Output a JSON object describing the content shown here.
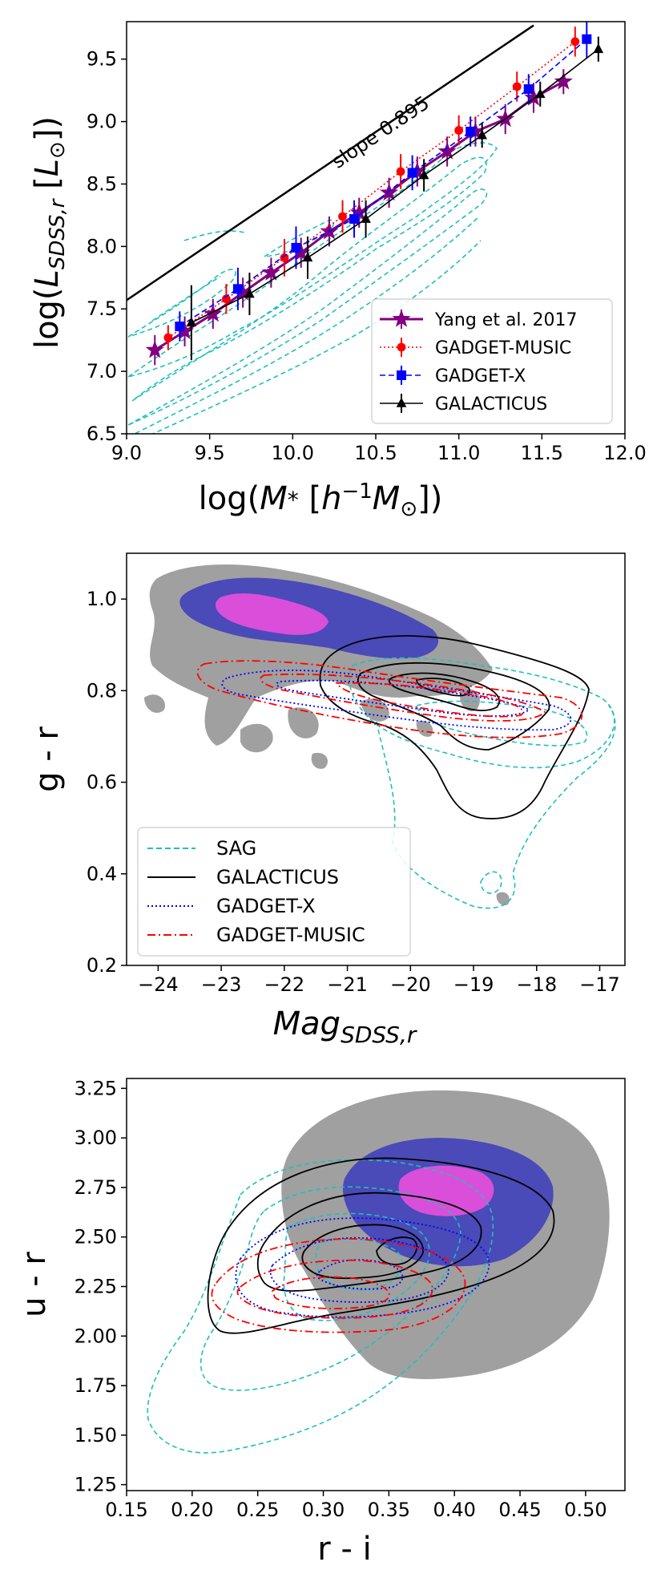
{
  "chart_data": [
    {
      "type": "line",
      "panel": "top",
      "xlabel": "log(M* [h^-1 M_sun])",
      "ylabel": "log(L_SDSS,r [L_sun])",
      "xlim": [
        9.0,
        12.0
      ],
      "ylim": [
        6.5,
        9.8
      ],
      "xticks": [
        "9.0",
        "9.5",
        "10.0",
        "10.5",
        "11.0",
        "11.5",
        "12.0"
      ],
      "yticks": [
        "6.5",
        "7.0",
        "7.5",
        "8.0",
        "8.5",
        "9.0",
        "9.5"
      ],
      "annotation": "slope 0.895",
      "reference_line": {
        "slope": 0.895,
        "x": [
          9.0,
          11.45
        ],
        "y": [
          7.57,
          9.77
        ]
      },
      "legend_position": "lower-right",
      "series": [
        {
          "name": "Yang et al. 2017",
          "color": "#800080",
          "marker": "star",
          "linestyle": "solid",
          "x": [
            9.17,
            9.35,
            9.52,
            9.7,
            9.87,
            10.05,
            10.22,
            10.4,
            10.58,
            10.75,
            10.93,
            11.1,
            11.28,
            11.45,
            11.63
          ],
          "y": [
            7.17,
            7.32,
            7.46,
            7.63,
            7.79,
            7.95,
            8.12,
            8.27,
            8.43,
            8.6,
            8.76,
            8.92,
            9.02,
            9.19,
            9.32
          ],
          "err": [
            0.12,
            0.12,
            0.12,
            0.12,
            0.12,
            0.12,
            0.12,
            0.12,
            0.12,
            0.12,
            0.12,
            0.12,
            0.12,
            0.12,
            0.1
          ]
        },
        {
          "name": "GADGET-MUSIC",
          "color": "#ff0000",
          "marker": "circle",
          "linestyle": "dotted",
          "x": [
            9.25,
            9.6,
            9.95,
            10.3,
            10.65,
            11.0,
            11.35,
            11.7
          ],
          "y": [
            7.27,
            7.58,
            7.91,
            8.24,
            8.6,
            8.93,
            9.28,
            9.64
          ],
          "err": [
            0.1,
            0.12,
            0.15,
            0.13,
            0.14,
            0.12,
            0.12,
            0.12
          ]
        },
        {
          "name": "GADGET-X",
          "color": "#0000ff",
          "marker": "square",
          "linestyle": "dashed",
          "x": [
            9.32,
            9.67,
            10.02,
            10.37,
            10.72,
            11.07,
            11.42,
            11.77
          ],
          "y": [
            7.36,
            7.66,
            7.99,
            8.22,
            8.59,
            8.92,
            9.26,
            9.66
          ],
          "err": [
            0.12,
            0.17,
            0.17,
            0.15,
            0.14,
            0.12,
            0.12,
            0.15
          ]
        },
        {
          "name": "GALACTICUS",
          "color": "#000000",
          "marker": "triangle",
          "linestyle": "solid",
          "x": [
            9.39,
            9.74,
            10.09,
            10.44,
            10.79,
            11.14,
            11.49,
            11.84
          ],
          "y": [
            7.39,
            7.62,
            7.91,
            8.22,
            8.57,
            8.89,
            9.22,
            9.58
          ],
          "err": [
            0.3,
            0.17,
            0.17,
            0.15,
            0.13,
            0.1,
            0.1,
            0.1
          ]
        }
      ],
      "background_contours": {
        "name": "SAG",
        "color": "#1fbfbf",
        "linestyle": "dashed"
      }
    },
    {
      "type": "scatter",
      "panel": "middle",
      "xlabel": "Mag_SDSS,r",
      "ylabel": "g - r",
      "xlim": [
        -24.5,
        -16.6
      ],
      "ylim": [
        0.2,
        1.1
      ],
      "xticks": [
        "−24",
        "−23",
        "−22",
        "−21",
        "−20",
        "−19",
        "−18",
        "−17"
      ],
      "yticks": [
        "0.2",
        "0.4",
        "0.6",
        "0.8",
        "1.0"
      ],
      "legend_position": "lower-left",
      "filled_density": {
        "levels": [
          "grey",
          "slateblue",
          "violet"
        ],
        "colors": [
          "#a0a0a0",
          "#4a4ab8",
          "#d94fd9"
        ]
      },
      "series": [
        {
          "name": "SAG",
          "color": "#1fbfbf",
          "linestyle": "dashed"
        },
        {
          "name": "GALACTICUS",
          "color": "#000000",
          "linestyle": "solid"
        },
        {
          "name": "GADGET-X",
          "color": "#0000ff",
          "linestyle": "dotted"
        },
        {
          "name": "GADGET-MUSIC",
          "color": "#ff0000",
          "linestyle": "dashdot"
        }
      ]
    },
    {
      "type": "scatter",
      "panel": "bottom",
      "xlabel": "r - i",
      "ylabel": "u - r",
      "xlim": [
        0.15,
        0.53
      ],
      "ylim": [
        1.22,
        3.3
      ],
      "xticks": [
        "0.15",
        "0.20",
        "0.25",
        "0.30",
        "0.35",
        "0.40",
        "0.45",
        "0.50"
      ],
      "yticks": [
        "1.25",
        "1.50",
        "1.75",
        "2.00",
        "2.25",
        "2.50",
        "2.75",
        "3.00",
        "3.25"
      ],
      "filled_density": {
        "levels": [
          "grey",
          "slateblue",
          "violet"
        ],
        "colors": [
          "#a0a0a0",
          "#4a4ab8",
          "#d94fd9"
        ]
      }
    }
  ]
}
